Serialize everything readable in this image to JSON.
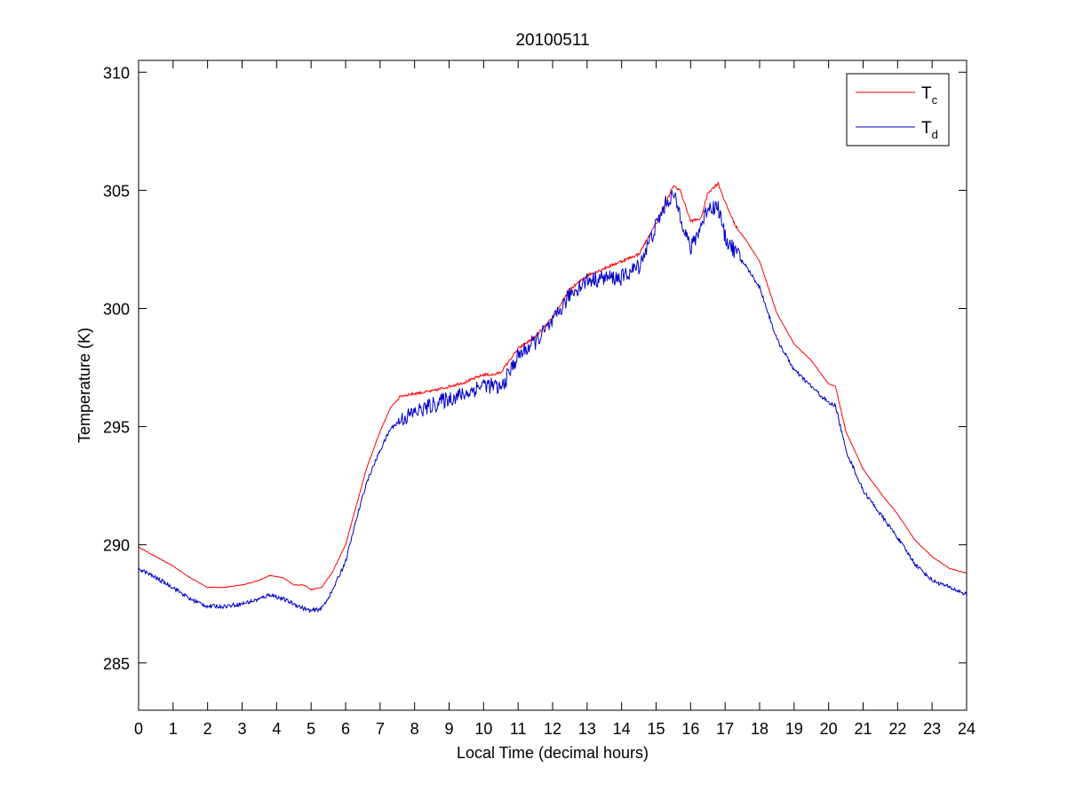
{
  "chart_data": {
    "type": "line",
    "title": "20100511",
    "xlabel": "Local Time (decimal hours)",
    "ylabel": "Temperature (K)",
    "xlim": [
      0,
      24
    ],
    "ylim": [
      283,
      310.5
    ],
    "xticks": [
      0,
      1,
      2,
      3,
      4,
      5,
      6,
      7,
      8,
      9,
      10,
      11,
      12,
      13,
      14,
      15,
      16,
      17,
      18,
      19,
      20,
      21,
      22,
      23,
      24
    ],
    "yticks": [
      285,
      290,
      295,
      300,
      305,
      310
    ],
    "grid": false,
    "legend_position": "top-right",
    "series": [
      {
        "name": "T_c",
        "legend_main": "T",
        "legend_sub": "c",
        "color": "#ff0000",
        "noise": 0.06,
        "x": [
          0,
          0.5,
          1,
          1.5,
          2,
          2.5,
          3,
          3.5,
          3.8,
          4.2,
          4.5,
          4.8,
          5,
          5.3,
          5.6,
          6,
          6.3,
          6.6,
          7,
          7.3,
          7.6,
          8,
          8.5,
          9,
          9.5,
          10,
          10.3,
          10.5,
          11,
          11.5,
          12,
          12.5,
          13,
          13.5,
          14,
          14.5,
          15,
          15.3,
          15.5,
          15.7,
          16,
          16.3,
          16.5,
          16.8,
          17,
          17.3,
          17.6,
          18,
          18.5,
          19,
          19.5,
          20,
          20.2,
          20.5,
          21,
          21.5,
          22,
          22.5,
          23,
          23.5,
          24
        ],
        "y": [
          289.9,
          289.5,
          289.1,
          288.6,
          288.2,
          288.2,
          288.3,
          288.5,
          288.7,
          288.6,
          288.3,
          288.3,
          288.1,
          288.2,
          288.8,
          290.0,
          291.6,
          293.2,
          294.8,
          295.8,
          296.3,
          296.4,
          296.5,
          296.7,
          296.9,
          297.2,
          297.2,
          297.3,
          298.3,
          298.8,
          299.6,
          300.8,
          301.4,
          301.7,
          302.0,
          302.3,
          303.6,
          304.5,
          305.2,
          305.0,
          303.7,
          303.8,
          304.9,
          305.3,
          304.5,
          303.5,
          302.9,
          302.0,
          299.8,
          298.5,
          297.8,
          296.8,
          296.7,
          294.8,
          293.2,
          292.2,
          291.3,
          290.2,
          289.5,
          289.0,
          288.8
        ]
      },
      {
        "name": "T_d",
        "legend_main": "T",
        "legend_sub": "d",
        "color": "#0000cc",
        "noise": 0.35,
        "x": [
          0,
          0.5,
          1,
          1.5,
          2,
          2.5,
          3,
          3.5,
          3.8,
          4.2,
          4.5,
          4.8,
          5,
          5.3,
          5.6,
          6,
          6.3,
          6.6,
          7,
          7.3,
          7.6,
          8,
          8.5,
          9,
          9.5,
          10,
          10.3,
          10.5,
          11,
          11.5,
          12,
          12.5,
          13,
          13.5,
          14,
          14.5,
          15,
          15.3,
          15.5,
          15.7,
          16,
          16.3,
          16.5,
          16.8,
          17,
          17.3,
          17.6,
          18,
          18.5,
          19,
          19.5,
          20,
          20.2,
          20.5,
          21,
          21.5,
          22,
          22.5,
          23,
          23.5,
          24
        ],
        "y": [
          289.0,
          288.6,
          288.2,
          287.7,
          287.4,
          287.4,
          287.5,
          287.7,
          287.9,
          287.7,
          287.5,
          287.3,
          287.2,
          287.3,
          288.0,
          289.3,
          291.0,
          292.6,
          294.0,
          294.9,
          295.3,
          295.6,
          295.9,
          296.2,
          296.4,
          296.8,
          296.7,
          296.6,
          298.0,
          298.6,
          299.4,
          300.6,
          301.2,
          301.3,
          301.3,
          301.8,
          303.5,
          304.5,
          304.8,
          304.0,
          302.5,
          303.5,
          304.3,
          304.3,
          303.0,
          302.4,
          301.8,
          300.9,
          298.7,
          297.4,
          296.7,
          296.0,
          295.9,
          294.0,
          292.3,
          291.3,
          290.3,
          289.2,
          288.5,
          288.2,
          287.9
        ]
      }
    ]
  }
}
